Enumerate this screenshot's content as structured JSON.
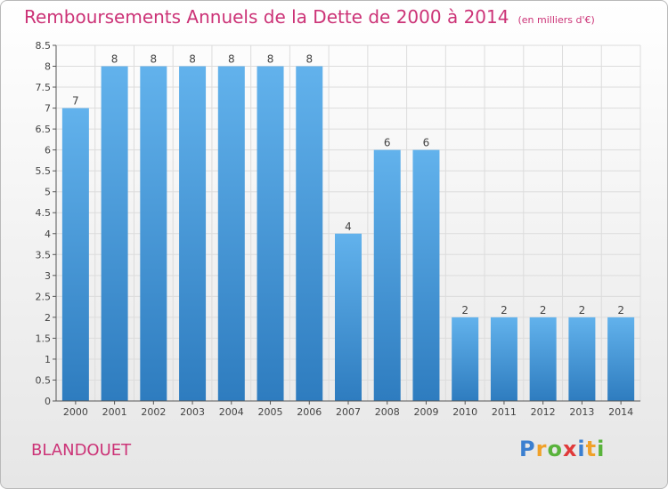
{
  "header": {
    "title": "Remboursements Annuels de la Dette de 2000 à 2014",
    "unit": "(en milliers d'€)"
  },
  "footer": {
    "place": "BLANDOUET",
    "brand": "Proxiti",
    "brand_letters": [
      {
        "ch": "P",
        "color": "#3b7fd0"
      },
      {
        "ch": "r",
        "color": "#f0a12a"
      },
      {
        "ch": "o",
        "color": "#59b33b"
      },
      {
        "ch": "x",
        "color": "#e03a3a"
      },
      {
        "ch": "i",
        "color": "#3b7fd0"
      },
      {
        "ch": "t",
        "color": "#f0a12a"
      },
      {
        "ch": "i",
        "color": "#59b33b"
      }
    ]
  },
  "chart_data": {
    "type": "bar",
    "title": "Remboursements Annuels de la Dette de 2000 à 2014",
    "subtitle": "(en milliers d'€)",
    "xlabel": "",
    "ylabel": "",
    "categories": [
      "2000",
      "2001",
      "2002",
      "2003",
      "2004",
      "2005",
      "2006",
      "2007",
      "2008",
      "2009",
      "2010",
      "2011",
      "2012",
      "2013",
      "2014"
    ],
    "values": [
      7,
      8,
      8,
      8,
      8,
      8,
      8,
      4,
      6,
      6,
      2,
      2,
      2,
      2,
      2
    ],
    "data_labels": [
      "7",
      "8",
      "8",
      "8",
      "8",
      "8",
      "8",
      "4",
      "6",
      "6",
      "2",
      "2",
      "2",
      "2",
      "2"
    ],
    "ylim": [
      0,
      8.5
    ],
    "yticks": [
      0,
      0.5,
      1,
      1.5,
      2,
      2.5,
      3,
      3.5,
      4,
      4.5,
      5,
      5.5,
      6,
      6.5,
      7,
      7.5,
      8,
      8.5
    ],
    "ytick_labels": [
      "0",
      "0.5",
      "1",
      "1.5",
      "2",
      "2.5",
      "3",
      "3.5",
      "4",
      "4.5",
      "5",
      "5.5",
      "6",
      "6.5",
      "7",
      "7.5",
      "8",
      "8.5"
    ],
    "grid": true,
    "colors": {
      "bar_top": "#62b2ec",
      "bar_bottom": "#2e7cbf",
      "grid": "#dcdcdc",
      "axis": "#555555",
      "text": "#444444",
      "title": "#cc3377"
    }
  }
}
